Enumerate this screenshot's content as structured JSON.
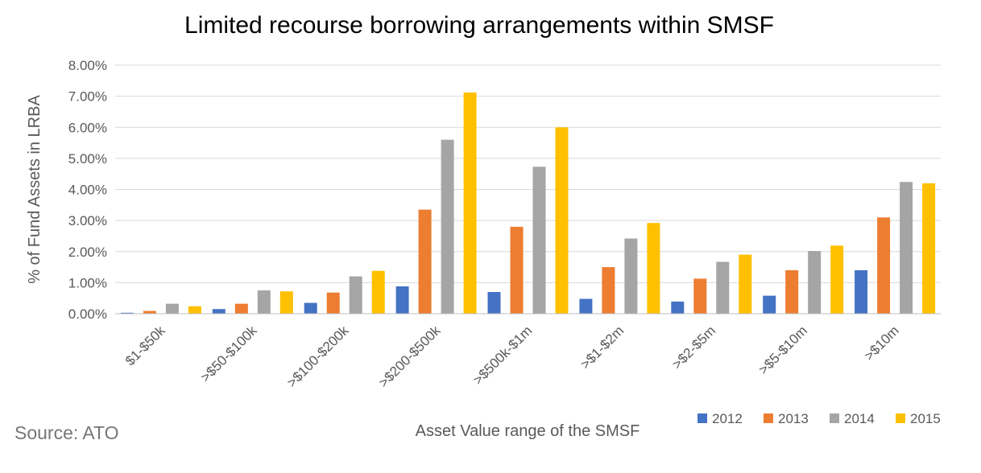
{
  "source": "Source: ATO",
  "chart_data": {
    "type": "bar",
    "title": "Limited recourse borrowing arrangements within SMSF",
    "xlabel": "Asset Value range of the SMSF",
    "ylabel": "% of Fund Assets in LRBA",
    "ylim": [
      0,
      8
    ],
    "yticks": [
      "0.00%",
      "1.00%",
      "2.00%",
      "3.00%",
      "4.00%",
      "5.00%",
      "6.00%",
      "7.00%",
      "8.00%"
    ],
    "grid": true,
    "legend_position": "bottom-right",
    "categories": [
      "$1-$50k",
      ">$50-$100k",
      ">$100-$200k",
      ">$200-$500k",
      ">$500k-$1m",
      ">$1-$2m",
      ">$2-$5m",
      ">$5-$10m",
      ">$10m"
    ],
    "series": [
      {
        "name": "2012",
        "color": "#4472c4",
        "values": [
          0.03,
          0.15,
          0.35,
          0.88,
          0.7,
          0.48,
          0.39,
          0.58,
          1.4
        ]
      },
      {
        "name": "2013",
        "color": "#ed7d31",
        "values": [
          0.09,
          0.32,
          0.68,
          3.35,
          2.8,
          1.5,
          1.13,
          1.4,
          3.1
        ]
      },
      {
        "name": "2014",
        "color": "#a5a5a5",
        "values": [
          0.32,
          0.75,
          1.2,
          5.6,
          4.73,
          2.42,
          1.67,
          2.02,
          4.24
        ]
      },
      {
        "name": "2015",
        "color": "#ffc000",
        "values": [
          0.24,
          0.72,
          1.38,
          7.12,
          6.0,
          2.92,
          1.9,
          2.19,
          4.2
        ]
      }
    ]
  }
}
